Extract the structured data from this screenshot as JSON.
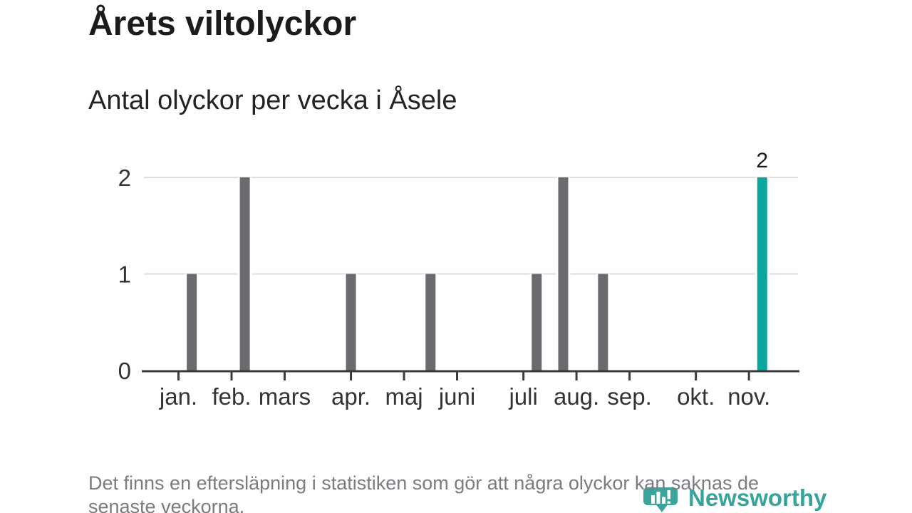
{
  "header": {
    "title": "Årets viltolyckor",
    "subtitle": "Antal olyckor per vecka i Åsele"
  },
  "chart_data": {
    "type": "bar",
    "title": "Årets viltolyckor",
    "subtitle": "Antal olyckor per vecka i Åsele",
    "x_unit": "vecka",
    "n_weeks": 46,
    "values": [
      0,
      1,
      0,
      0,
      0,
      2,
      0,
      0,
      0,
      0,
      0,
      0,
      0,
      1,
      0,
      0,
      0,
      0,
      0,
      1,
      0,
      0,
      0,
      0,
      0,
      0,
      0,
      1,
      0,
      2,
      0,
      0,
      1,
      0,
      0,
      0,
      0,
      0,
      0,
      0,
      0,
      0,
      0,
      0,
      2,
      0
    ],
    "nonzero_points": [
      {
        "week": 2,
        "value": 1
      },
      {
        "week": 6,
        "value": 2
      },
      {
        "week": 14,
        "value": 1
      },
      {
        "week": 20,
        "value": 1
      },
      {
        "week": 28,
        "value": 1
      },
      {
        "week": 30,
        "value": 2
      },
      {
        "week": 33,
        "value": 1
      },
      {
        "week": 45,
        "value": 2
      }
    ],
    "highlight_week": 45,
    "highlight_value_label": "2",
    "month_ticks": [
      {
        "label": "jan.",
        "week": 1
      },
      {
        "label": "feb.",
        "week": 5
      },
      {
        "label": "mars",
        "week": 9
      },
      {
        "label": "apr.",
        "week": 14
      },
      {
        "label": "maj",
        "week": 18
      },
      {
        "label": "juni",
        "week": 22
      },
      {
        "label": "juli",
        "week": 27
      },
      {
        "label": "aug.",
        "week": 31
      },
      {
        "label": "sep.",
        "week": 35
      },
      {
        "label": "okt.",
        "week": 40
      },
      {
        "label": "nov.",
        "week": 44
      }
    ],
    "y_ticks": [
      {
        "value": 0,
        "label": "0"
      },
      {
        "value": 1,
        "label": "1"
      },
      {
        "value": 2,
        "label": "2"
      }
    ],
    "ylim": [
      0,
      2
    ],
    "grid": "horizontal",
    "colors": {
      "bar": "#6a6a6f",
      "highlight": "#0aa79c",
      "axis": "#3b3b3b",
      "grid": "#dcdcdc",
      "tick_text": "#333333",
      "value_label": "#1a1a1a"
    }
  },
  "footnote": {
    "line1": "Det finns en eftersläpning i statistiken som gör att några olyckor kan saknas de",
    "line2": "senaste veckorna."
  },
  "logo": {
    "icon": "newsworthy-chart-bubble-icon",
    "text": "Newsworthy",
    "color": "#3aa59d"
  }
}
